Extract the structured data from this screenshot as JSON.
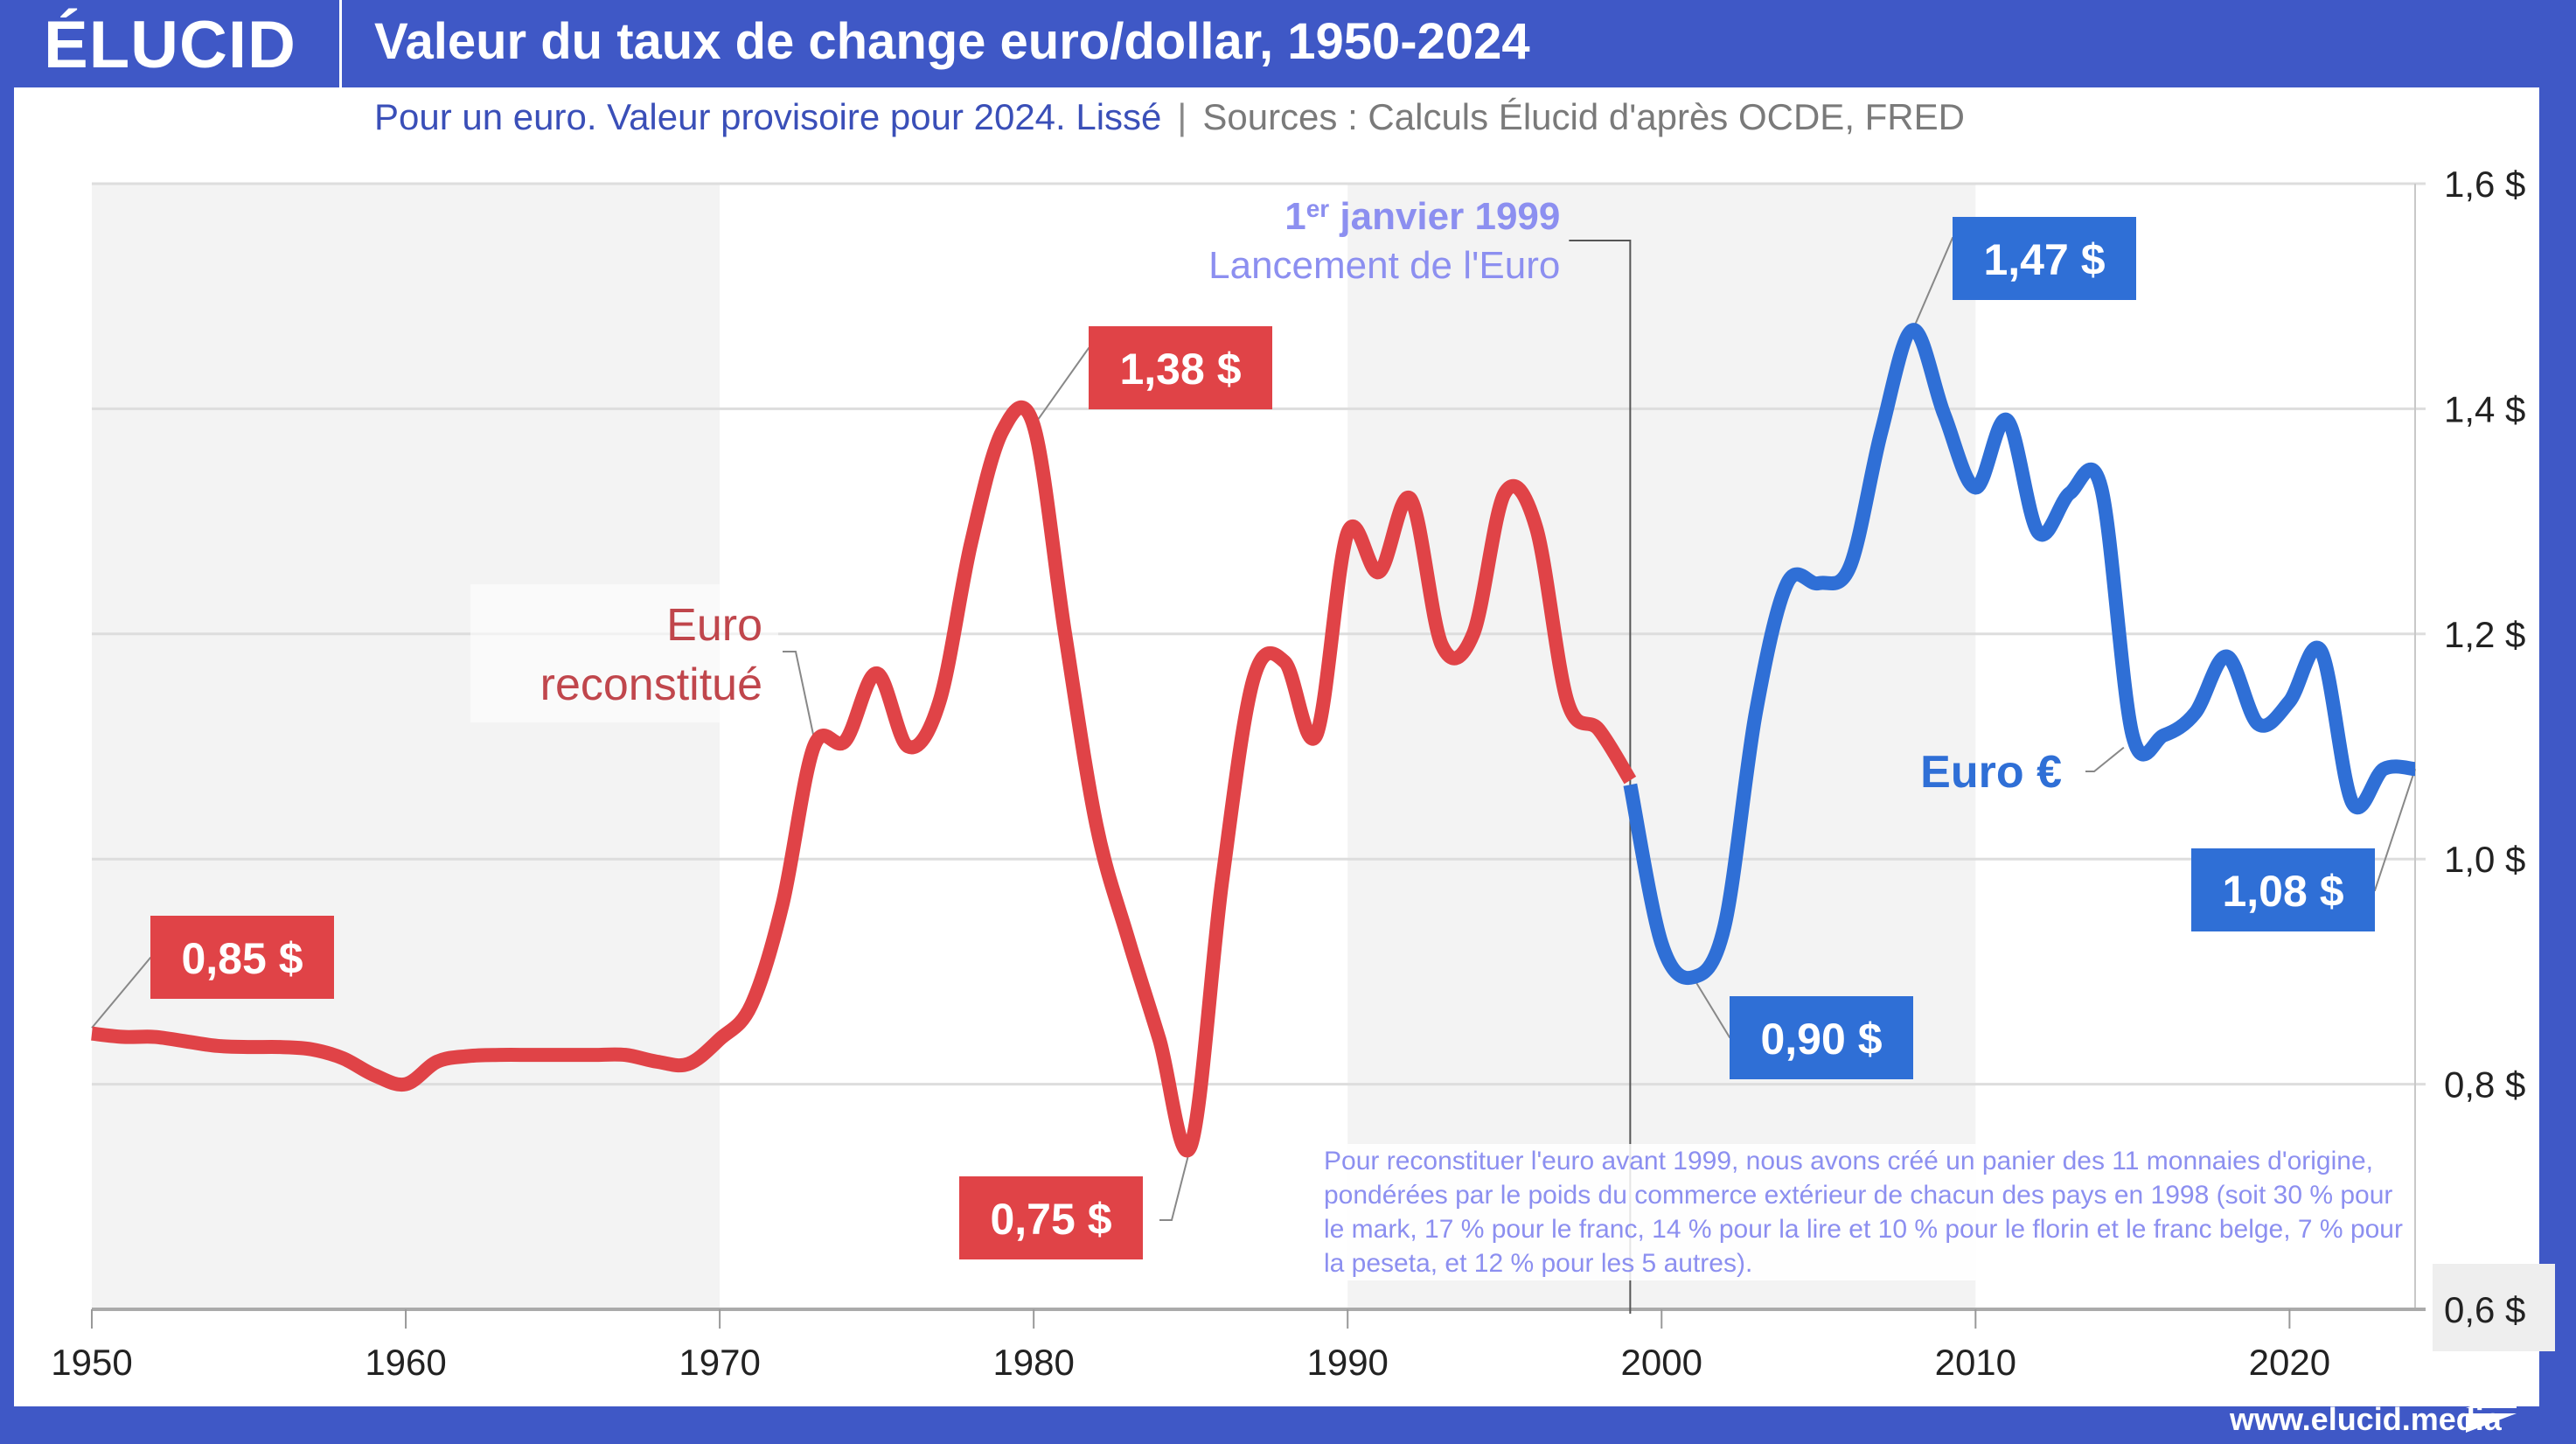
{
  "header": {
    "logo": "ÉLUCID",
    "title": "Valeur du taux de change euro/dollar, 1950-2024",
    "subtitle_main": "Pour un euro. Valeur provisoire pour 2024. Lissé",
    "subtitle_separator": "|",
    "subtitle_sources": "Sources : Calculs Élucid d'après OCDE, FRED"
  },
  "footer": {
    "url": "www.elucid.media"
  },
  "colors": {
    "brand": "#3f58c6",
    "red_series": "#e04347",
    "blue_series": "#2f6fd6",
    "annotation": "#8c8ff0",
    "shade": "#f3f3f3"
  },
  "chart_data": {
    "type": "line",
    "title": "Valeur du taux de change euro/dollar, 1950-2024",
    "subtitle": "Pour un euro. Valeur provisoire pour 2024. Lissé",
    "xlabel": "",
    "ylabel": "",
    "xlim": [
      1950,
      2024
    ],
    "ylim": [
      0.6,
      1.6
    ],
    "grid": true,
    "x_ticks": [
      1950,
      1960,
      1970,
      1980,
      1990,
      2000,
      2010,
      2020
    ],
    "x_tick_labels": [
      "1950",
      "1960",
      "1970",
      "1980",
      "1990",
      "2000",
      "2010",
      "2020"
    ],
    "y_ticks": [
      0.6,
      0.8,
      1.0,
      1.2,
      1.4,
      1.6
    ],
    "y_tick_labels": [
      "0,6 $",
      "0,8 $",
      "1,0 $",
      "1,2 $",
      "1,4 $",
      "1,6 $"
    ],
    "shaded_bands": [
      [
        1950,
        1970
      ],
      [
        1990,
        2010
      ]
    ],
    "series": [
      {
        "name": "Euro reconstitué",
        "label_lines": [
          "Euro",
          "reconstitué"
        ],
        "color": "#e04347",
        "x": [
          1950,
          1951,
          1952,
          1953,
          1954,
          1955,
          1956,
          1957,
          1958,
          1959,
          1960,
          1961,
          1962,
          1963,
          1964,
          1965,
          1966,
          1967,
          1968,
          1969,
          1970,
          1971,
          1972,
          1973,
          1974,
          1975,
          1976,
          1977,
          1978,
          1979,
          1980,
          1981,
          1982,
          1983,
          1984,
          1985,
          1986,
          1987,
          1988,
          1989,
          1990,
          1991,
          1992,
          1993,
          1994,
          1995,
          1996,
          1997,
          1998,
          1999
        ],
        "values": [
          0.845,
          0.842,
          0.842,
          0.838,
          0.834,
          0.833,
          0.833,
          0.831,
          0.823,
          0.808,
          0.8,
          0.82,
          0.825,
          0.826,
          0.826,
          0.826,
          0.826,
          0.826,
          0.82,
          0.818,
          0.84,
          0.87,
          0.96,
          1.1,
          1.105,
          1.165,
          1.1,
          1.14,
          1.28,
          1.38,
          1.385,
          1.2,
          1.03,
          0.93,
          0.84,
          0.745,
          0.98,
          1.16,
          1.175,
          1.11,
          1.29,
          1.255,
          1.32,
          1.19,
          1.2,
          1.325,
          1.295,
          1.14,
          1.115,
          1.07
        ]
      },
      {
        "name": "Euro €",
        "label_lines": [
          "Euro €"
        ],
        "color": "#2f6fd6",
        "x": [
          1999,
          2000,
          2001,
          2002,
          2003,
          2004,
          2005,
          2006,
          2007,
          2008,
          2009,
          2010,
          2011,
          2012,
          2013,
          2014,
          2015,
          2016,
          2017,
          2018,
          2019,
          2020,
          2021,
          2022,
          2023,
          2024
        ],
        "values": [
          1.066,
          0.925,
          0.895,
          0.94,
          1.13,
          1.245,
          1.245,
          1.26,
          1.38,
          1.47,
          1.395,
          1.33,
          1.39,
          1.29,
          1.325,
          1.33,
          1.11,
          1.11,
          1.13,
          1.18,
          1.12,
          1.14,
          1.185,
          1.05,
          1.08,
          1.08
        ]
      }
    ],
    "annotations": [
      {
        "text": "0,85 $",
        "x": 1950,
        "y": 0.85,
        "series": 0
      },
      {
        "text": "1,38 $",
        "x": 1980,
        "y": 1.385,
        "series": 0
      },
      {
        "text": "0,75 $",
        "x": 1985,
        "y": 0.745,
        "series": 0
      },
      {
        "text": "0,90 $",
        "x": 2001,
        "y": 0.895,
        "series": 1
      },
      {
        "text": "1,47 $",
        "x": 2008,
        "y": 1.47,
        "series": 1
      },
      {
        "text": "1,08 $",
        "x": 2024,
        "y": 1.08,
        "series": 1
      }
    ],
    "event": {
      "year": 1999,
      "date_line": [
        "1",
        "er",
        " janvier 1999"
      ],
      "label": "Lancement de l'Euro"
    },
    "note": "Pour reconstituer l'euro avant 1999, nous avons créé un panier des 11 monnaies d'origine, pondérées par le poids du commerce extérieur de chacun des pays en 1998 (soit 30 % pour le mark, 17 % pour le franc, 14 % pour la lire et 10 % pour le florin et le franc belge, 7 % pour la peseta, et 12 % pour les 5 autres)."
  }
}
